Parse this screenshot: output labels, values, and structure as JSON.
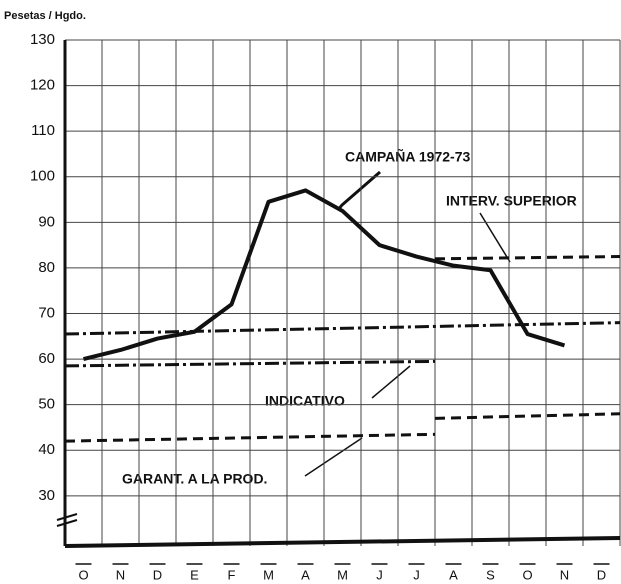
{
  "chart_data": {
    "type": "line",
    "y_label": "Pesetas / Hgdo.",
    "categories": [
      "O",
      "N",
      "D",
      "E",
      "F",
      "M",
      "A",
      "M",
      "J",
      "J",
      "A",
      "S",
      "O",
      "N",
      "D"
    ],
    "series": [
      {
        "name": "CAMPAÑA 1972-73",
        "color": "#111",
        "values": [
          60,
          62,
          64.5,
          66,
          72,
          94.5,
          97,
          92.5,
          85,
          82.5,
          80.5,
          79.5,
          65.5,
          63,
          null
        ]
      }
    ],
    "reference_lines": [
      {
        "name": "INTERV. SUPERIOR",
        "segments": [
          {
            "x": [
              -0.5,
              14.5
            ],
            "values": [
              65.5,
              68
            ],
            "style": "dashdot"
          },
          {
            "x": [
              9.5,
              14.5
            ],
            "values": [
              82,
              82.5
            ],
            "style": "dashed"
          }
        ]
      },
      {
        "name": "INDICATIVO",
        "segments": [
          {
            "x": [
              -0.5,
              9.5
            ],
            "values": [
              58.5,
              59.5
            ],
            "style": "dashdot"
          }
        ]
      },
      {
        "name": "GARANT. A LA PROD.",
        "segments": [
          {
            "x": [
              -0.5,
              9.5
            ],
            "values": [
              42,
              43.5
            ],
            "style": "dashed"
          },
          {
            "x": [
              9.5,
              14.5
            ],
            "values": [
              47,
              48
            ],
            "style": "dashed"
          }
        ]
      }
    ],
    "ylim": [
      19,
      130
    ],
    "yticks": [
      30,
      40,
      50,
      60,
      70,
      80,
      90,
      100,
      110,
      120,
      130
    ],
    "grid": true
  }
}
